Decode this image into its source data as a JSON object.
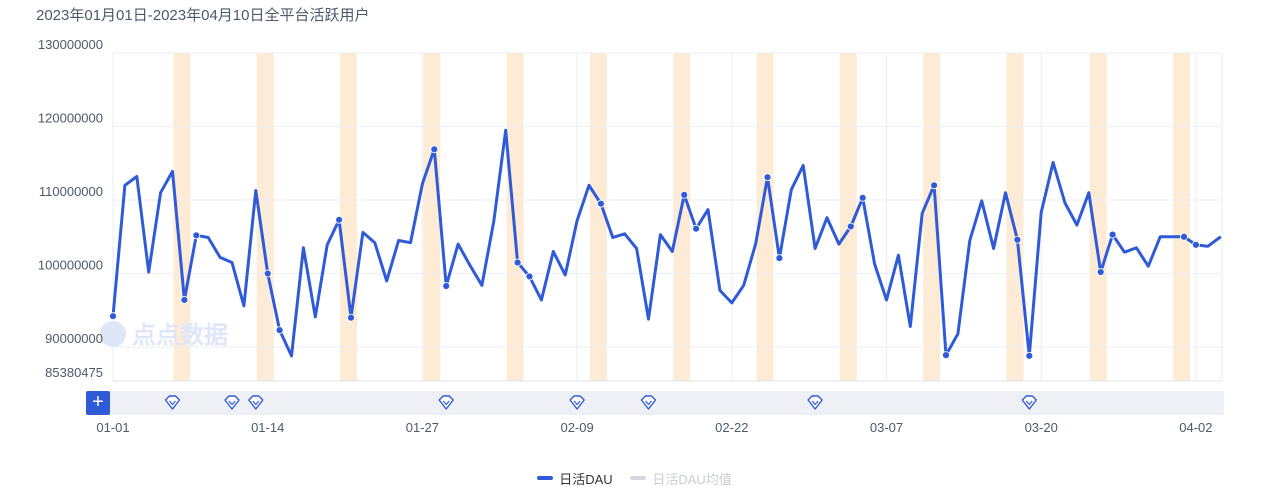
{
  "title": "2023年01月01日-2023年04月10日全平台活跃用户",
  "watermark": "点点数据",
  "zoom_button_label": "+",
  "colors": {
    "line": "#2f5bd8",
    "weekend_band": "#fdebd6",
    "grid": "#ebeef3",
    "marker_bar_bg": "#eef0f6",
    "inactive_legend": "#c9cdd4"
  },
  "legend": [
    {
      "label": "日活DAU",
      "active": true
    },
    {
      "label": "日活DAU均值",
      "active": false
    }
  ],
  "chart_data": {
    "type": "line",
    "title": "2023年01月01日-2023年04月10日全平台活跃用户",
    "x_start": "2023-01-01",
    "x_end": "2023-04-10",
    "ylim": [
      85380475,
      130000000
    ],
    "y_ticks": [
      130000000,
      120000000,
      110000000,
      100000000,
      90000000,
      85380475
    ],
    "x_ticks": [
      "01-01",
      "01-14",
      "01-27",
      "02-09",
      "02-22",
      "03-07",
      "03-20",
      "04-02"
    ],
    "weekend_band_dates": [
      "01-07",
      "01-14",
      "01-21",
      "01-28",
      "02-04",
      "02-11",
      "02-18",
      "02-25",
      "03-04",
      "03-11",
      "03-18",
      "03-25",
      "04-01"
    ],
    "event_marker_dates": [
      "01-06",
      "01-11",
      "01-13",
      "01-29",
      "02-09",
      "02-15",
      "03-01",
      "03-19"
    ],
    "highlighted_point_dates": [
      "01-01",
      "01-07",
      "01-08",
      "01-14",
      "01-15",
      "01-20",
      "01-21",
      "01-28",
      "01-29",
      "02-04",
      "02-05",
      "02-11",
      "02-18",
      "02-19",
      "02-25",
      "02-26",
      "03-04",
      "03-05",
      "03-11",
      "03-12",
      "03-18",
      "03-19",
      "03-25",
      "03-26",
      "04-01",
      "04-02"
    ],
    "series": [
      {
        "name": "日活DAU",
        "values": [
          94200000,
          112000000,
          113200000,
          100200000,
          111000000,
          113900000,
          96400000,
          105200000,
          104900000,
          102200000,
          101500000,
          95600000,
          111300000,
          100000000,
          92300000,
          88800000,
          103500000,
          94100000,
          103900000,
          107300000,
          94000000,
          105600000,
          104200000,
          99000000,
          104500000,
          104200000,
          112200000,
          116900000,
          98300000,
          104000000,
          101100000,
          98400000,
          107100000,
          119500000,
          101500000,
          99600000,
          96400000,
          103000000,
          99800000,
          107200000,
          112000000,
          109500000,
          104900000,
          105400000,
          103400000,
          93800000,
          105300000,
          103000000,
          110700000,
          106100000,
          108700000,
          97700000,
          96000000,
          98400000,
          104000000,
          113100000,
          102100000,
          111400000,
          114700000,
          103400000,
          107600000,
          104000000,
          106400000,
          110300000,
          101300000,
          96400000,
          102500000,
          92800000,
          108200000,
          112000000,
          88900000,
          91800000,
          104500000,
          109900000,
          103400000,
          111000000,
          104600000,
          88800000,
          108300000,
          115100000,
          109600000,
          106600000,
          111000000,
          100200000,
          105300000,
          102900000,
          103500000,
          101000000,
          105000000,
          105000000,
          105000000,
          103900000,
          103700000,
          104900000
        ]
      },
      {
        "name": "日活DAU均值",
        "values": []
      }
    ]
  }
}
